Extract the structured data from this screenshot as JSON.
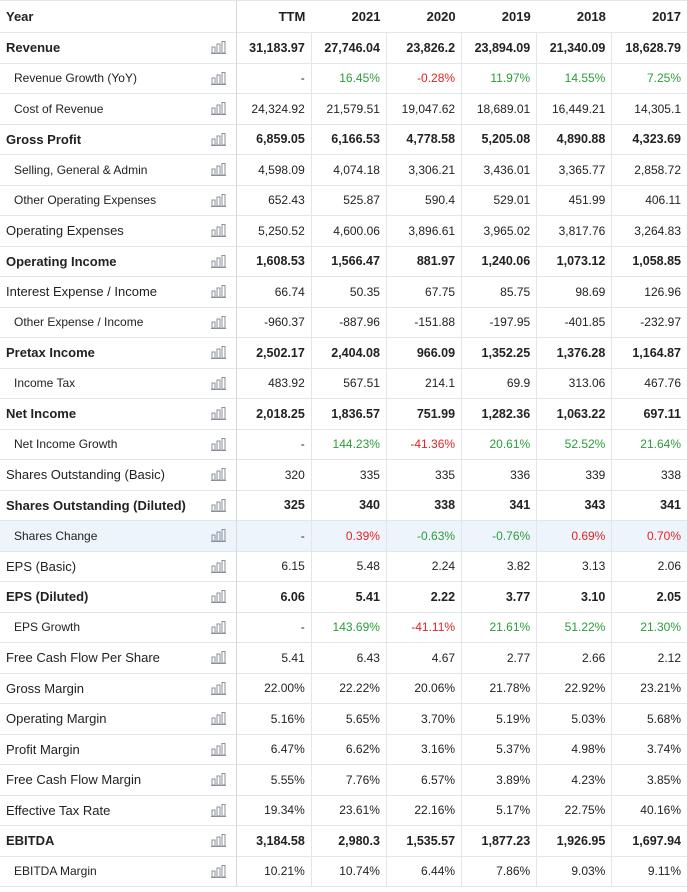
{
  "header": {
    "year_label": "Year",
    "columns": [
      "TTM",
      "2021",
      "2020",
      "2019",
      "2018",
      "2017"
    ]
  },
  "colors": {
    "positive": "#2a9d3a",
    "negative": "#e02424",
    "highlight_row": "#eef4fc"
  },
  "icon": "bar-chart-icon",
  "rows": [
    {
      "label": "Revenue",
      "bold": true,
      "sub": false,
      "values": [
        "31,183.97",
        "27,746.04",
        "23,826.2",
        "23,894.09",
        "21,340.09",
        "18,628.79"
      ]
    },
    {
      "label": "Revenue Growth (YoY)",
      "bold": false,
      "sub": true,
      "values": [
        "-",
        "16.45%",
        "-0.28%",
        "11.97%",
        "14.55%",
        "7.25%"
      ],
      "colored": true
    },
    {
      "label": "Cost of Revenue",
      "bold": false,
      "sub": true,
      "values": [
        "24,324.92",
        "21,579.51",
        "19,047.62",
        "18,689.01",
        "16,449.21",
        "14,305.1"
      ]
    },
    {
      "label": "Gross Profit",
      "bold": true,
      "sub": false,
      "values": [
        "6,859.05",
        "6,166.53",
        "4,778.58",
        "5,205.08",
        "4,890.88",
        "4,323.69"
      ]
    },
    {
      "label": "Selling, General & Admin",
      "bold": false,
      "sub": true,
      "values": [
        "4,598.09",
        "4,074.18",
        "3,306.21",
        "3,436.01",
        "3,365.77",
        "2,858.72"
      ]
    },
    {
      "label": "Other Operating Expenses",
      "bold": false,
      "sub": true,
      "values": [
        "652.43",
        "525.87",
        "590.4",
        "529.01",
        "451.99",
        "406.11"
      ]
    },
    {
      "label": "Operating Expenses",
      "bold": false,
      "sub": false,
      "values": [
        "5,250.52",
        "4,600.06",
        "3,896.61",
        "3,965.02",
        "3,817.76",
        "3,264.83"
      ]
    },
    {
      "label": "Operating Income",
      "bold": true,
      "sub": false,
      "values": [
        "1,608.53",
        "1,566.47",
        "881.97",
        "1,240.06",
        "1,073.12",
        "1,058.85"
      ]
    },
    {
      "label": "Interest Expense / Income",
      "bold": false,
      "sub": false,
      "values": [
        "66.74",
        "50.35",
        "67.75",
        "85.75",
        "98.69",
        "126.96"
      ]
    },
    {
      "label": "Other Expense / Income",
      "bold": false,
      "sub": true,
      "values": [
        "-960.37",
        "-887.96",
        "-151.88",
        "-197.95",
        "-401.85",
        "-232.97"
      ]
    },
    {
      "label": "Pretax Income",
      "bold": true,
      "sub": false,
      "values": [
        "2,502.17",
        "2,404.08",
        "966.09",
        "1,352.25",
        "1,376.28",
        "1,164.87"
      ]
    },
    {
      "label": "Income Tax",
      "bold": false,
      "sub": true,
      "values": [
        "483.92",
        "567.51",
        "214.1",
        "69.9",
        "313.06",
        "467.76"
      ]
    },
    {
      "label": "Net Income",
      "bold": true,
      "sub": false,
      "values": [
        "2,018.25",
        "1,836.57",
        "751.99",
        "1,282.36",
        "1,063.22",
        "697.11"
      ]
    },
    {
      "label": "Net Income Growth",
      "bold": false,
      "sub": true,
      "values": [
        "-",
        "144.23%",
        "-41.36%",
        "20.61%",
        "52.52%",
        "21.64%"
      ],
      "colored": true
    },
    {
      "label": "Shares Outstanding (Basic)",
      "bold": false,
      "sub": false,
      "values": [
        "320",
        "335",
        "335",
        "336",
        "339",
        "338"
      ]
    },
    {
      "label": "Shares Outstanding (Diluted)",
      "bold": true,
      "sub": false,
      "values": [
        "325",
        "340",
        "338",
        "341",
        "343",
        "341"
      ]
    },
    {
      "label": "Shares Change",
      "bold": false,
      "sub": true,
      "values": [
        "-",
        "0.39%",
        "-0.63%",
        "-0.76%",
        "0.69%",
        "0.70%"
      ],
      "colored": true,
      "highlight": true,
      "colors": [
        "",
        "neg",
        "pos",
        "pos",
        "neg",
        "neg"
      ]
    },
    {
      "label": "EPS (Basic)",
      "bold": false,
      "sub": false,
      "values": [
        "6.15",
        "5.48",
        "2.24",
        "3.82",
        "3.13",
        "2.06"
      ]
    },
    {
      "label": "EPS (Diluted)",
      "bold": true,
      "sub": false,
      "values": [
        "6.06",
        "5.41",
        "2.22",
        "3.77",
        "3.10",
        "2.05"
      ]
    },
    {
      "label": "EPS Growth",
      "bold": false,
      "sub": true,
      "values": [
        "-",
        "143.69%",
        "-41.11%",
        "21.61%",
        "51.22%",
        "21.30%"
      ],
      "colored": true
    },
    {
      "label": "Free Cash Flow Per Share",
      "bold": false,
      "sub": false,
      "values": [
        "5.41",
        "6.43",
        "4.67",
        "2.77",
        "2.66",
        "2.12"
      ]
    },
    {
      "label": "Gross Margin",
      "bold": false,
      "sub": false,
      "values": [
        "22.00%",
        "22.22%",
        "20.06%",
        "21.78%",
        "22.92%",
        "23.21%"
      ]
    },
    {
      "label": "Operating Margin",
      "bold": false,
      "sub": false,
      "values": [
        "5.16%",
        "5.65%",
        "3.70%",
        "5.19%",
        "5.03%",
        "5.68%"
      ]
    },
    {
      "label": "Profit Margin",
      "bold": false,
      "sub": false,
      "values": [
        "6.47%",
        "6.62%",
        "3.16%",
        "5.37%",
        "4.98%",
        "3.74%"
      ]
    },
    {
      "label": "Free Cash Flow Margin",
      "bold": false,
      "sub": false,
      "values": [
        "5.55%",
        "7.76%",
        "6.57%",
        "3.89%",
        "4.23%",
        "3.85%"
      ]
    },
    {
      "label": "Effective Tax Rate",
      "bold": false,
      "sub": false,
      "values": [
        "19.34%",
        "23.61%",
        "22.16%",
        "5.17%",
        "22.75%",
        "40.16%"
      ]
    },
    {
      "label": "EBITDA",
      "bold": true,
      "sub": false,
      "values": [
        "3,184.58",
        "2,980.3",
        "1,535.57",
        "1,877.23",
        "1,926.95",
        "1,697.94"
      ]
    },
    {
      "label": "EBITDA Margin",
      "bold": false,
      "sub": true,
      "values": [
        "10.21%",
        "10.74%",
        "6.44%",
        "7.86%",
        "9.03%",
        "9.11%"
      ]
    }
  ]
}
